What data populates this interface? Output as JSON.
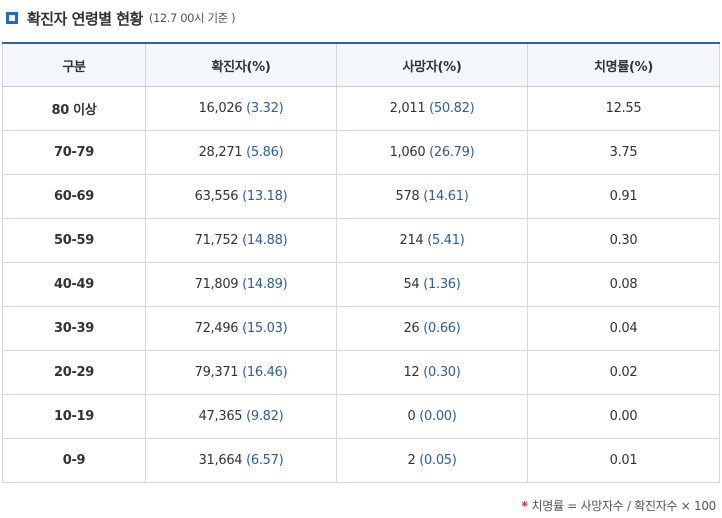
{
  "header": {
    "title": "확진자 연령별 현황",
    "subtitle": "(12.7 00시 기준 )",
    "icon": "square-bullet-icon",
    "accent_color": "#1a6cc7"
  },
  "table": {
    "columns": [
      "구분",
      "확진자(%)",
      "사망자(%)",
      "치명률(%)"
    ],
    "rows": [
      {
        "group": "80 이상",
        "confirmed": "16,026",
        "confirmed_pct": "(3.32)",
        "deaths": "2,011",
        "deaths_pct": "(50.82)",
        "fatality": "12.55"
      },
      {
        "group": "70-79",
        "confirmed": "28,271",
        "confirmed_pct": "(5.86)",
        "deaths": "1,060",
        "deaths_pct": "(26.79)",
        "fatality": "3.75"
      },
      {
        "group": "60-69",
        "confirmed": "63,556",
        "confirmed_pct": "(13.18)",
        "deaths": "578",
        "deaths_pct": "(14.61)",
        "fatality": "0.91"
      },
      {
        "group": "50-59",
        "confirmed": "71,752",
        "confirmed_pct": "(14.88)",
        "deaths": "214",
        "deaths_pct": "(5.41)",
        "fatality": "0.30"
      },
      {
        "group": "40-49",
        "confirmed": "71,809",
        "confirmed_pct": "(14.89)",
        "deaths": "54",
        "deaths_pct": "(1.36)",
        "fatality": "0.08"
      },
      {
        "group": "30-39",
        "confirmed": "72,496",
        "confirmed_pct": "(15.03)",
        "deaths": "26",
        "deaths_pct": "(0.66)",
        "fatality": "0.04"
      },
      {
        "group": "20-29",
        "confirmed": "79,371",
        "confirmed_pct": "(16.46)",
        "deaths": "12",
        "deaths_pct": "(0.30)",
        "fatality": "0.02"
      },
      {
        "group": "10-19",
        "confirmed": "47,365",
        "confirmed_pct": "(9.82)",
        "deaths": "0",
        "deaths_pct": "(0.00)",
        "fatality": "0.00"
      },
      {
        "group": "0-9",
        "confirmed": "31,664",
        "confirmed_pct": "(6.57)",
        "deaths": "2",
        "deaths_pct": "(0.05)",
        "fatality": "0.01"
      }
    ]
  },
  "footnote": {
    "marker": "*",
    "text": "치명률 = 사망자수 / 확진자수 × 100"
  },
  "colors": {
    "header_top_border": "#2e64a8",
    "header_background": "#f4f7fb",
    "percent_text": "#2a5e9e",
    "footnote_marker": "#d62828"
  }
}
